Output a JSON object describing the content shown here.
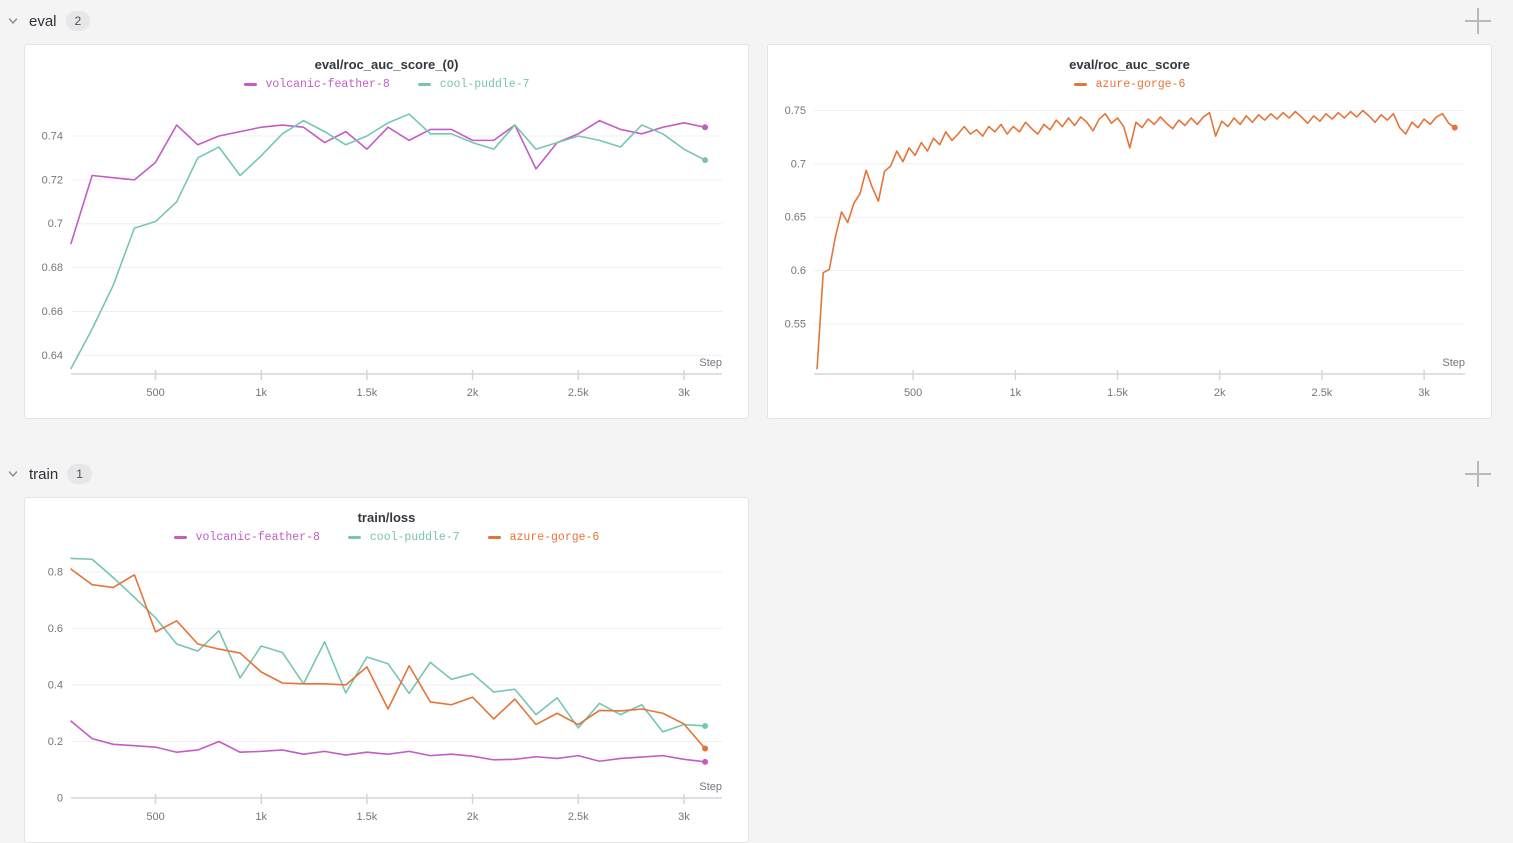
{
  "sections": [
    {
      "title": "eval",
      "count": "2"
    },
    {
      "title": "train",
      "count": "1"
    }
  ],
  "icons": {
    "chevron": "chevron-down-icon",
    "add_panel": "add-panel-plus-icon"
  },
  "colors": {
    "volcanic_feather_8": "#C45BC6",
    "cool_puddle_7": "#76C6B4",
    "azure_gorge_6": "#E57439",
    "grid": "#efeff2",
    "axis": "#d6d6da",
    "tick_text": "#75757f",
    "page_bg": "#f4f4f5",
    "card_bg": "#ffffff"
  },
  "chart_data": [
    {
      "type": "line",
      "title": "eval/roc_auc_score_(0)",
      "xlabel": "Step",
      "legend_position": "top",
      "grid": "horizontal",
      "x_tick_labels": [
        "500",
        "1k",
        "1.5k",
        "2k",
        "2.5k",
        "3k"
      ],
      "x_tick_values": [
        500,
        1000,
        1500,
        2000,
        2500,
        3000
      ],
      "y_ticks": [
        0.64,
        0.66,
        0.68,
        0.7,
        0.72,
        0.74
      ],
      "xlim": [
        100,
        3180
      ],
      "ylim": [
        0.6315,
        0.7555
      ],
      "series": [
        {
          "name": "volcanic-feather-8",
          "color": "#C45BC6",
          "x": [
            100,
            200,
            300,
            400,
            500,
            600,
            700,
            800,
            900,
            1000,
            1100,
            1200,
            1300,
            1400,
            1500,
            1600,
            1700,
            1800,
            1900,
            2000,
            2100,
            2200,
            2300,
            2400,
            2500,
            2600,
            2700,
            2800,
            2900,
            3000,
            3100
          ],
          "y": [
            0.691,
            0.722,
            0.721,
            0.72,
            0.728,
            0.745,
            0.736,
            0.74,
            0.742,
            0.744,
            0.745,
            0.744,
            0.737,
            0.742,
            0.734,
            0.744,
            0.738,
            0.743,
            0.743,
            0.738,
            0.738,
            0.745,
            0.725,
            0.737,
            0.741,
            0.747,
            0.743,
            0.741,
            0.744,
            0.746,
            0.744
          ]
        },
        {
          "name": "cool-puddle-7",
          "color": "#76C6B4",
          "x": [
            100,
            200,
            300,
            400,
            500,
            600,
            700,
            800,
            900,
            1000,
            1100,
            1200,
            1300,
            1400,
            1500,
            1600,
            1700,
            1800,
            1900,
            2000,
            2100,
            2200,
            2300,
            2400,
            2500,
            2600,
            2700,
            2800,
            2900,
            3000,
            3100
          ],
          "y": [
            0.634,
            0.652,
            0.672,
            0.698,
            0.701,
            0.71,
            0.73,
            0.735,
            0.722,
            0.731,
            0.741,
            0.747,
            0.742,
            0.736,
            0.74,
            0.746,
            0.75,
            0.741,
            0.741,
            0.737,
            0.734,
            0.745,
            0.734,
            0.737,
            0.74,
            0.738,
            0.735,
            0.745,
            0.741,
            0.734,
            0.729
          ]
        }
      ]
    },
    {
      "type": "line",
      "title": "eval/roc_auc_score",
      "xlabel": "Step",
      "legend_position": "top",
      "grid": "horizontal",
      "x_tick_labels": [
        "500",
        "1k",
        "1.5k",
        "2k",
        "2.5k",
        "3k"
      ],
      "x_tick_values": [
        500,
        1000,
        1500,
        2000,
        2500,
        3000
      ],
      "y_ticks": [
        0.55,
        0.6,
        0.65,
        0.7,
        0.75
      ],
      "xlim": [
        15,
        3200
      ],
      "ylim": [
        0.503,
        0.758
      ],
      "series": [
        {
          "name": "azure-gorge-6",
          "color": "#E57439",
          "x": [
            30,
            60,
            90,
            120,
            150,
            180,
            210,
            240,
            270,
            300,
            330,
            360,
            390,
            420,
            450,
            480,
            510,
            540,
            570,
            600,
            630,
            660,
            690,
            720,
            750,
            780,
            810,
            840,
            870,
            900,
            930,
            960,
            990,
            1020,
            1050,
            1080,
            1110,
            1140,
            1170,
            1200,
            1230,
            1260,
            1290,
            1320,
            1350,
            1380,
            1410,
            1440,
            1470,
            1500,
            1530,
            1560,
            1590,
            1620,
            1650,
            1680,
            1710,
            1740,
            1770,
            1800,
            1830,
            1860,
            1890,
            1920,
            1950,
            1980,
            2010,
            2040,
            2070,
            2100,
            2130,
            2160,
            2190,
            2220,
            2250,
            2280,
            2310,
            2340,
            2370,
            2400,
            2430,
            2460,
            2490,
            2520,
            2550,
            2580,
            2610,
            2640,
            2670,
            2700,
            2730,
            2760,
            2790,
            2820,
            2850,
            2880,
            2910,
            2940,
            2970,
            3000,
            3030,
            3060,
            3090,
            3120,
            3150
          ],
          "y": [
            0.508,
            0.598,
            0.601,
            0.632,
            0.655,
            0.645,
            0.663,
            0.672,
            0.694,
            0.678,
            0.665,
            0.693,
            0.698,
            0.712,
            0.702,
            0.715,
            0.708,
            0.72,
            0.712,
            0.724,
            0.718,
            0.73,
            0.722,
            0.728,
            0.735,
            0.728,
            0.732,
            0.726,
            0.735,
            0.73,
            0.737,
            0.728,
            0.735,
            0.73,
            0.739,
            0.733,
            0.728,
            0.737,
            0.732,
            0.741,
            0.735,
            0.743,
            0.736,
            0.744,
            0.739,
            0.731,
            0.742,
            0.747,
            0.738,
            0.743,
            0.735,
            0.715,
            0.739,
            0.734,
            0.742,
            0.737,
            0.744,
            0.738,
            0.733,
            0.741,
            0.736,
            0.743,
            0.737,
            0.744,
            0.748,
            0.726,
            0.74,
            0.735,
            0.743,
            0.737,
            0.745,
            0.739,
            0.746,
            0.741,
            0.747,
            0.742,
            0.748,
            0.743,
            0.749,
            0.744,
            0.738,
            0.745,
            0.74,
            0.747,
            0.742,
            0.748,
            0.743,
            0.749,
            0.744,
            0.75,
            0.745,
            0.739,
            0.746,
            0.741,
            0.747,
            0.734,
            0.728,
            0.739,
            0.734,
            0.742,
            0.737,
            0.744,
            0.747,
            0.738,
            0.734
          ]
        }
      ]
    },
    {
      "type": "line",
      "title": "train/loss",
      "xlabel": "Step",
      "legend_position": "top",
      "grid": "horizontal",
      "x_tick_labels": [
        "500",
        "1k",
        "1.5k",
        "2k",
        "2.5k",
        "3k"
      ],
      "x_tick_values": [
        500,
        1000,
        1500,
        2000,
        2500,
        3000
      ],
      "y_ticks": [
        0,
        0.2,
        0.4,
        0.6,
        0.8
      ],
      "xlim": [
        100,
        3180
      ],
      "ylim": [
        0,
        0.86
      ],
      "series": [
        {
          "name": "volcanic-feather-8",
          "color": "#C45BC6",
          "x": [
            100,
            200,
            300,
            400,
            500,
            600,
            700,
            800,
            900,
            1000,
            1100,
            1200,
            1300,
            1400,
            1500,
            1600,
            1700,
            1800,
            1900,
            2000,
            2100,
            2200,
            2300,
            2400,
            2500,
            2600,
            2700,
            2800,
            2900,
            3000,
            3100
          ],
          "y": [
            0.272,
            0.21,
            0.19,
            0.185,
            0.18,
            0.162,
            0.17,
            0.2,
            0.162,
            0.165,
            0.17,
            0.155,
            0.165,
            0.152,
            0.162,
            0.155,
            0.165,
            0.15,
            0.155,
            0.148,
            0.135,
            0.137,
            0.146,
            0.14,
            0.15,
            0.13,
            0.14,
            0.145,
            0.15,
            0.137,
            0.128
          ]
        },
        {
          "name": "cool-puddle-7",
          "color": "#76C6B4",
          "x": [
            100,
            200,
            300,
            400,
            500,
            600,
            700,
            800,
            900,
            1000,
            1100,
            1200,
            1300,
            1400,
            1500,
            1600,
            1700,
            1800,
            1900,
            2000,
            2100,
            2200,
            2300,
            2400,
            2500,
            2600,
            2700,
            2800,
            2900,
            3000,
            3100
          ],
          "y": [
            0.848,
            0.845,
            0.78,
            0.71,
            0.638,
            0.545,
            0.52,
            0.592,
            0.425,
            0.538,
            0.515,
            0.404,
            0.553,
            0.372,
            0.499,
            0.475,
            0.37,
            0.48,
            0.42,
            0.44,
            0.375,
            0.385,
            0.295,
            0.355,
            0.248,
            0.335,
            0.295,
            0.33,
            0.234,
            0.26,
            0.255
          ]
        },
        {
          "name": "azure-gorge-6",
          "color": "#E57439",
          "x": [
            100,
            200,
            300,
            400,
            500,
            600,
            700,
            800,
            900,
            1000,
            1100,
            1200,
            1300,
            1400,
            1500,
            1600,
            1700,
            1800,
            1900,
            2000,
            2100,
            2200,
            2300,
            2400,
            2500,
            2600,
            2700,
            2800,
            2900,
            3000,
            3100
          ],
          "y": [
            0.81,
            0.755,
            0.745,
            0.79,
            0.588,
            0.627,
            0.545,
            0.527,
            0.513,
            0.446,
            0.407,
            0.404,
            0.404,
            0.4,
            0.464,
            0.315,
            0.468,
            0.34,
            0.33,
            0.357,
            0.28,
            0.35,
            0.26,
            0.3,
            0.26,
            0.31,
            0.308,
            0.315,
            0.3,
            0.262,
            0.175
          ]
        }
      ]
    }
  ]
}
